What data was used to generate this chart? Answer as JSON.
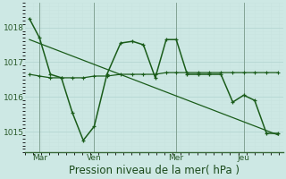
{
  "bg_color": "#cde8e4",
  "grid_color_major": "#b8d8d4",
  "grid_color_minor": "#c8e4e0",
  "line_color": "#1a5c1a",
  "xlabel": "Pression niveau de la mer( hPa )",
  "xlabel_fontsize": 8.5,
  "yticks": [
    1015,
    1016,
    1017,
    1018
  ],
  "ylim": [
    1014.4,
    1018.6
  ],
  "xtick_labels": [
    "Mar",
    "Ven",
    "Mer",
    "Jeu"
  ],
  "xtick_pos": [
    16,
    76,
    166,
    240
  ],
  "vline_pos": [
    16,
    76,
    166,
    240
  ],
  "zigzag_x": [
    5,
    16,
    28,
    40,
    52,
    64,
    76,
    90,
    105,
    118,
    130,
    143,
    155,
    166,
    178,
    190,
    202,
    215,
    228,
    240,
    252,
    265,
    278
  ],
  "zigzag_y": [
    1018.25,
    1017.7,
    1016.65,
    1016.55,
    1015.55,
    1014.75,
    1015.15,
    1016.65,
    1017.55,
    1017.6,
    1017.5,
    1016.55,
    1017.65,
    1017.65,
    1016.65,
    1016.65,
    1016.65,
    1016.65,
    1015.85,
    1016.05,
    1015.9,
    1014.95,
    1014.95
  ],
  "smooth_x": [
    5,
    16,
    28,
    40,
    52,
    64,
    76,
    90,
    105,
    118,
    130,
    143,
    155,
    166,
    178,
    190,
    202,
    215,
    228,
    240,
    252,
    265,
    278
  ],
  "smooth_y": [
    1016.65,
    1016.6,
    1016.55,
    1016.55,
    1016.55,
    1016.55,
    1016.6,
    1016.6,
    1016.65,
    1016.65,
    1016.65,
    1016.65,
    1016.7,
    1016.7,
    1016.7,
    1016.7,
    1016.7,
    1016.7,
    1016.7,
    1016.7,
    1016.7,
    1016.7,
    1016.7
  ],
  "trend_x": [
    5,
    278
  ],
  "trend_y": [
    1017.65,
    1014.9
  ],
  "xlim": [
    0,
    283
  ]
}
